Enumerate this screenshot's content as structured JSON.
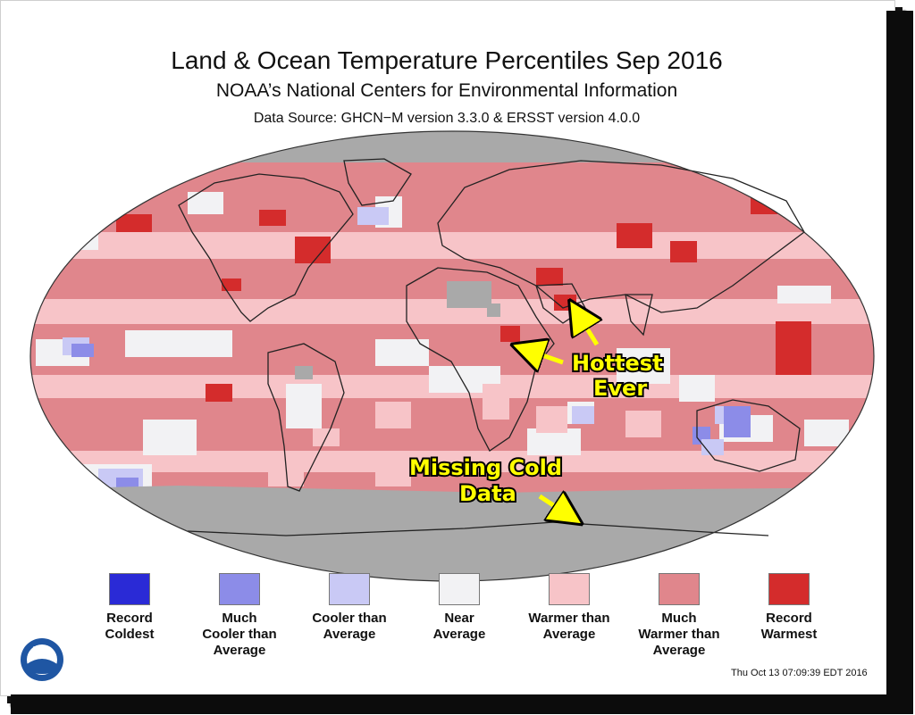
{
  "header": {
    "title": "Land & Ocean Temperature Percentiles Sep 2016",
    "subtitle": "NOAA’s National Centers for Environmental Information",
    "source": "Data Source: GHCN−M version 3.3.0 & ERSST version 4.0.0"
  },
  "colors": {
    "record_coldest": "#2a2ad6",
    "much_cooler": "#8c8ce8",
    "cooler": "#c9c9f5",
    "near": "#f2f2f4",
    "warmer": "#f7c4c8",
    "much_warmer": "#e0868c",
    "record_warmest": "#d42c2c",
    "missing": "#a9a9a9",
    "callout_text": "#ffff00"
  },
  "annotations": {
    "hottest_line1": "Hottest",
    "hottest_line2": "Ever",
    "missing_line1": "Missing Cold",
    "missing_line2": "Data"
  },
  "legend": [
    {
      "key": "record_coldest",
      "label": "Record\nColdest"
    },
    {
      "key": "much_cooler",
      "label": "Much\nCooler than\nAverage"
    },
    {
      "key": "cooler",
      "label": "Cooler than\nAverage"
    },
    {
      "key": "near",
      "label": "Near\nAverage"
    },
    {
      "key": "warmer",
      "label": "Warmer than\nAverage"
    },
    {
      "key": "much_warmer",
      "label": "Much\nWarmer than\nAverage"
    },
    {
      "key": "record_warmest",
      "label": "Record\nWarmest"
    }
  ],
  "footer": {
    "timestamp": "Thu Oct 13 07:09:39 EDT 2016",
    "logo_text": "NOAA"
  }
}
